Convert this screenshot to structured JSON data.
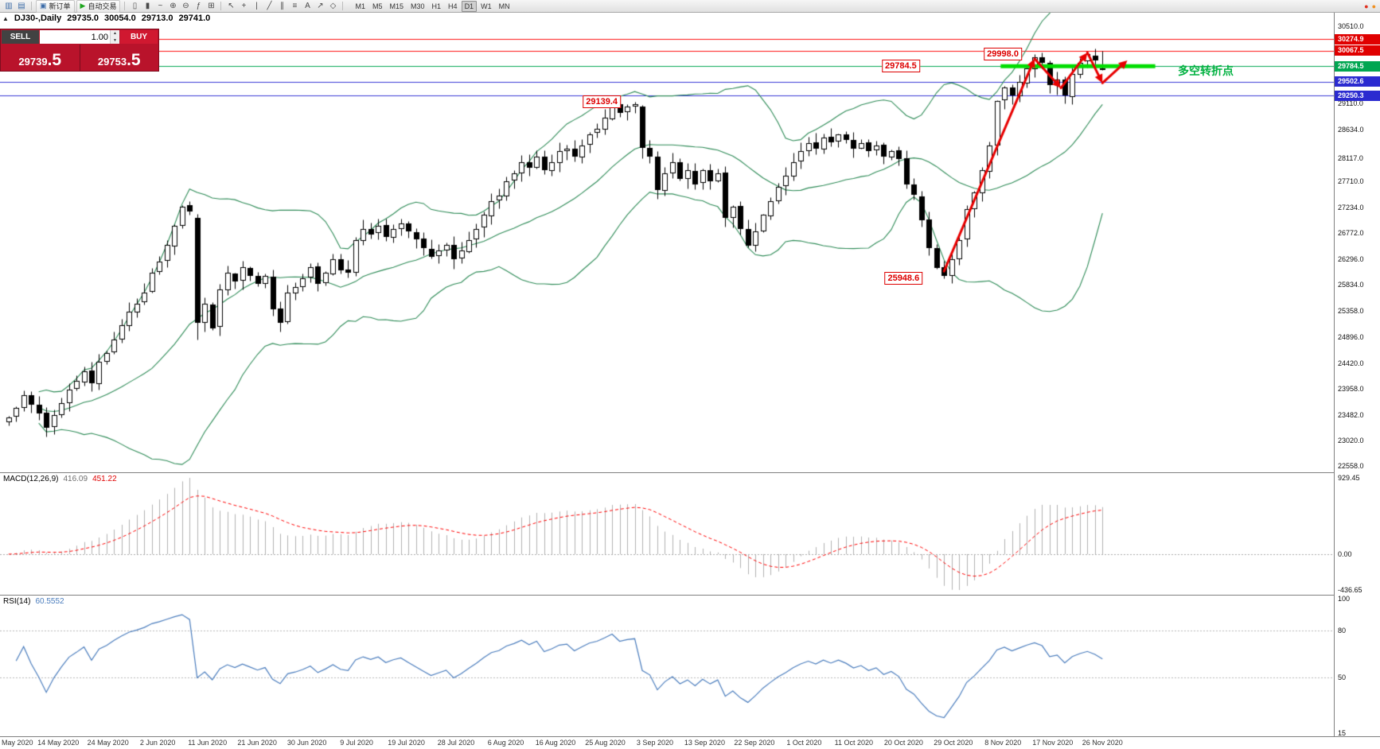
{
  "toolbar": {
    "file_icons": [
      {
        "name": "new-chart-icon",
        "glyph": "▥"
      },
      {
        "name": "profiles-icon",
        "glyph": "▤"
      }
    ],
    "order_buttons": [
      {
        "name": "new-order-button",
        "icon": "▣",
        "icon_color": "#3c6ca8",
        "label": "新订单"
      },
      {
        "name": "auto-trading-button",
        "icon": "▶",
        "icon_color": "#1fa51f",
        "label": "自动交易"
      }
    ],
    "chart_tools": [
      {
        "name": "bar-chart-icon",
        "glyph": "▯"
      },
      {
        "name": "candlestick-chart-icon",
        "glyph": "▮"
      },
      {
        "name": "line-chart-icon",
        "glyph": "~"
      },
      {
        "name": "zoom-in-icon",
        "glyph": "⊕"
      },
      {
        "name": "zoom-out-icon",
        "glyph": "⊖"
      },
      {
        "name": "indicators-icon",
        "glyph": "ƒ"
      },
      {
        "name": "grid-icon",
        "glyph": "⊞"
      }
    ],
    "draw_tools": [
      {
        "name": "cursor-icon",
        "glyph": "↖"
      },
      {
        "name": "crosshair-icon",
        "glyph": "+"
      },
      {
        "name": "vertical-line-icon",
        "glyph": "|"
      },
      {
        "name": "trendline-icon",
        "glyph": "╱"
      },
      {
        "name": "channel-icon",
        "glyph": "∥"
      },
      {
        "name": "fibonacci-icon",
        "glyph": "≡"
      },
      {
        "name": "text-icon",
        "glyph": "A"
      },
      {
        "name": "arrow-tool-icon",
        "glyph": "↗"
      },
      {
        "name": "shapes-icon",
        "glyph": "◇"
      }
    ],
    "timeframes": [
      "M1",
      "M5",
      "M15",
      "M30",
      "H1",
      "H4",
      "D1",
      "W1",
      "MN"
    ],
    "active_timeframe": "D1",
    "right_icons": [
      {
        "name": "alert-red-icon",
        "glyph": "●",
        "color": "#e03020"
      },
      {
        "name": "alert-orange-icon",
        "glyph": "●",
        "color": "#f09020"
      }
    ]
  },
  "chart_header": {
    "collapse_icon": "▲",
    "symbol_period": "DJ30-,Daily",
    "open": "29735.0",
    "high": "30054.0",
    "low": "29713.0",
    "close": "29741.0"
  },
  "trade_panel": {
    "sell_label": "SELL",
    "buy_label": "BUY",
    "volume": "1.00",
    "volume_up_icon": "▲",
    "volume_down_icon": "▼",
    "sell_price_main": "29739",
    "sell_price_pips": ".5",
    "buy_price_main": "29753",
    "buy_price_pips": ".5"
  },
  "price_scale": {
    "ticks": [
      {
        "label": "30510.0",
        "price": 30510.0
      },
      {
        "label": "29110.0",
        "price": 29110.0
      },
      {
        "label": "28634.0",
        "price": 28634.0
      },
      {
        "label": "28117.0",
        "price": 28117.0
      },
      {
        "label": "27710.0",
        "price": 27710.0
      },
      {
        "label": "27234.0",
        "price": 27234.0
      },
      {
        "label": "26772.0",
        "price": 26772.0
      },
      {
        "label": "26296.0",
        "price": 26296.0
      },
      {
        "label": "25834.0",
        "price": 25834.0
      },
      {
        "label": "25358.0",
        "price": 25358.0
      },
      {
        "label": "24896.0",
        "price": 24896.0
      },
      {
        "label": "24420.0",
        "price": 24420.0
      },
      {
        "label": "23958.0",
        "price": 23958.0
      },
      {
        "label": "23482.0",
        "price": 23482.0
      },
      {
        "label": "23020.0",
        "price": 23020.0
      },
      {
        "label": "22558.0",
        "price": 22558.0
      }
    ],
    "badges": [
      {
        "label": "30274.9",
        "price": 30274.9,
        "bg": "#e00000"
      },
      {
        "label": "30067.5",
        "price": 30067.5,
        "bg": "#e00000"
      },
      {
        "label": "29784.5",
        "price": 29784.5,
        "bg": "#00a651"
      },
      {
        "label": "29502.6",
        "price": 29502.6,
        "bg": "#2b2bd0"
      },
      {
        "label": "29250.3",
        "price": 29250.3,
        "bg": "#2b2bd0"
      }
    ]
  },
  "hlines": [
    {
      "price": 30274.9,
      "color": "#ff1010",
      "width": 1
    },
    {
      "price": 30067.5,
      "color": "#ff1010",
      "width": 1
    },
    {
      "price": 29784.5,
      "color": "#00a651",
      "width": 1
    },
    {
      "price": 29502.6,
      "color": "#3a3ad6",
      "width": 1
    },
    {
      "price": 29250.3,
      "color": "#3a3ad6",
      "width": 1
    }
  ],
  "annotations": {
    "price_labels": [
      {
        "text": "29998.0",
        "i": 136,
        "price": 29998.0,
        "dx": -16
      },
      {
        "text": "29784.5",
        "i": 121,
        "price": 29784.5,
        "dx": -2
      },
      {
        "text": "29139.4",
        "i": 82,
        "price": 29139.4,
        "dx": -8
      },
      {
        "text": "25948.6",
        "i": 122,
        "price": 25948.6,
        "dx": -8
      }
    ],
    "trend_text": {
      "text": "多空转折点",
      "color": "#00b140",
      "price": 29784.5,
      "x": 1480,
      "dy": -4
    },
    "thick_line": {
      "price": 29784.5,
      "i1": 132,
      "i2": 152.5,
      "color": "#00dd00",
      "width": 5
    },
    "zigzag": {
      "color": "#e80000",
      "width": 3,
      "points": [
        [
          124,
          26080
        ],
        [
          136,
          29920
        ],
        [
          139.5,
          29390
        ],
        [
          143,
          30030
        ],
        [
          145,
          29480
        ],
        [
          148.3,
          29890
        ]
      ]
    }
  },
  "macd": {
    "label": "MACD(12,26,9)",
    "value_main": "416.09",
    "value_signal": "451.22",
    "scale_max": "929.45",
    "scale_zero": "0.00",
    "scale_min": "-436.65",
    "hist_color": "#b0b0b0",
    "signal_color": "#ff0000"
  },
  "rsi": {
    "label": "RSI(14)",
    "value": "60.5552",
    "scale": [
      "100",
      "80",
      "50",
      "15"
    ],
    "scale_values": [
      100,
      80,
      50,
      15
    ],
    "levels": [
      80,
      50
    ],
    "line_color": "#4b7dbd"
  },
  "dates": [
    "May 2020",
    "14 May 2020",
    "24 May 2020",
    "2 Jun 2020",
    "11 Jun 2020",
    "21 Jun 2020",
    "30 Jun 2020",
    "9 Jul 2020",
    "19 Jul 2020",
    "28 Jul 2020",
    "6 Aug 2020",
    "16 Aug 2020",
    "25 Aug 2020",
    "3 Sep 2020",
    "13 Sep 2020",
    "22 Sep 2020",
    "1 Oct 2020",
    "11 Oct 2020",
    "20 Oct 2020",
    "29 Oct 2020",
    "8 Nov 2020",
    "17 Nov 2020",
    "26 Nov 2020"
  ],
  "chart_data": {
    "type": "candlestick",
    "symbol": "DJ30-",
    "period": "Daily",
    "bid": "29739.5",
    "ask": "29753.5",
    "last_ohlc": {
      "open": 29735.0,
      "high": 30054.0,
      "low": 29713.0,
      "close": 29741.0
    },
    "y_range": [
      22450,
      30750
    ],
    "candle_up_color": "#ffffff",
    "candle_down_color": "#000000",
    "bollinger_color": "#2e8b57",
    "closes": [
      23445,
      23620,
      23850,
      23680,
      23510,
      23250,
      23480,
      23700,
      23950,
      24100,
      24280,
      24050,
      24450,
      24600,
      24850,
      25100,
      25350,
      25500,
      25700,
      26050,
      26250,
      26550,
      26900,
      27250,
      27150,
      25150,
      25500,
      25050,
      25750,
      26050,
      25900,
      26150,
      26000,
      25850,
      26000,
      25400,
      25150,
      25700,
      25800,
      25950,
      26150,
      25850,
      26050,
      26300,
      26100,
      26050,
      26650,
      26850,
      26750,
      26900,
      26700,
      26850,
      26950,
      26800,
      26650,
      26500,
      26350,
      26450,
      26550,
      26300,
      26450,
      26650,
      26850,
      27100,
      27350,
      27450,
      27700,
      27850,
      28050,
      27950,
      28150,
      27900,
      28050,
      28250,
      28300,
      28150,
      28350,
      28550,
      28650,
      28850,
      29100,
      28950,
      29050,
      29100,
      28300,
      28150,
      27550,
      27850,
      28050,
      27750,
      27900,
      27650,
      27900,
      27700,
      27850,
      27050,
      27250,
      26850,
      26550,
      26800,
      27100,
      27350,
      27600,
      27800,
      28050,
      28250,
      28400,
      28300,
      28500,
      28400,
      28550,
      28450,
      28300,
      28400,
      28250,
      28350,
      28150,
      28250,
      28100,
      27650,
      27450,
      27000,
      26500,
      26150,
      26000,
      26300,
      26650,
      27200,
      27500,
      27900,
      28350,
      29150,
      29400,
      29250,
      29500,
      29750,
      29950,
      29850,
      29450,
      29550,
      29250,
      29650,
      29850,
      30000,
      29900,
      29741
    ],
    "overrides": {
      "25": {
        "open": 27050,
        "high": 27120,
        "low": 24850,
        "close": 25150
      },
      "83": {
        "high": 29139.4
      },
      "84": {
        "open": 29050,
        "high": 29090,
        "low": 28120
      },
      "124": {
        "low": 25948.6
      },
      "136": {
        "high": 29998.0
      },
      "145": {
        "open": 29735.0,
        "high": 30054.0,
        "low": 29713.0
      }
    },
    "indicators": {
      "bollinger_period": 20,
      "bollinger_dev": 2,
      "macd": [
        12,
        26,
        9
      ],
      "rsi_period": 14
    }
  }
}
